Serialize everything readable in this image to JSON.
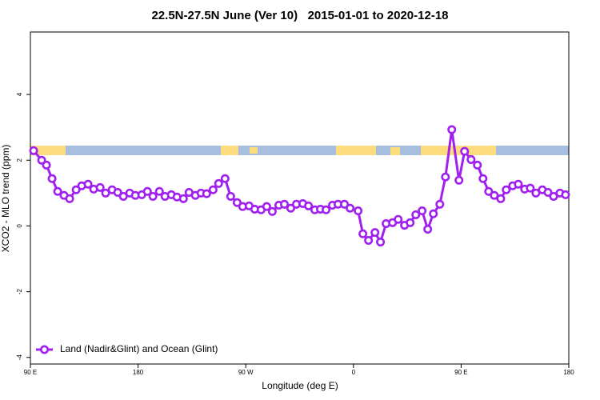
{
  "chart_data": {
    "type": "line",
    "title": "22.5N-27.5N June (Ver 10)   2015-01-01 to 2020-12-18",
    "x_label": "Longitude (deg E)",
    "y_label": "XCO2 - MLO trend (ppm)",
    "xlim": [
      90,
      540
    ],
    "ylim": [
      -4.2,
      5.9
    ],
    "xticks": [
      {
        "value": 90,
        "label": "90 E"
      },
      180,
      {
        "value": 270,
        "label": "90 W"
      },
      {
        "value": 360,
        "label": "0"
      },
      {
        "value": 450,
        "label": "90 E"
      },
      {
        "value": 540,
        "label": "180"
      }
    ],
    "yticks": [
      -4,
      -2,
      0,
      2,
      4
    ],
    "legend": "bottom-left",
    "x": [
      92.7,
      99.4,
      103.4,
      108.1,
      112.8,
      118.1,
      122.8,
      128.2,
      132.9,
      138.2,
      142.9,
      148.3,
      152.9,
      158.3,
      163,
      167.7,
      173,
      177.7,
      183.1,
      187.8,
      192.4,
      197.8,
      202.5,
      207.8,
      212.5,
      217.9,
      222.6,
      227.9,
      232.6,
      237.3,
      242.7,
      247.3,
      252.7,
      257.4,
      262.8,
      267.4,
      272.8,
      277.5,
      282.8,
      287.5,
      292.2,
      297.6,
      302.3,
      307.6,
      312.3,
      317.7,
      322.4,
      327.7,
      332.4,
      337.1,
      342.4,
      347.1,
      352.5,
      357.2,
      363.9,
      367.9,
      372.6,
      378,
      382.6,
      387.3,
      392.7,
      397.4,
      402.7,
      407.4,
      412.1,
      417.4,
      422.1,
      426.8,
      432.2,
      436.9,
      442.2,
      448.2,
      452.9,
      458.3,
      463.6,
      468.3,
      473,
      477.7,
      483.1,
      487.7,
      493.1,
      497.8,
      503.1,
      507.8,
      512.5,
      517.9,
      522.6,
      527.3,
      532.6,
      537.3
    ],
    "series": [
      {
        "name": "Land (Nadir&Glint) and Ocean (Glint)",
        "color": "#a020f0",
        "values": [
          2.29,
          2.0,
          1.85,
          1.44,
          1.05,
          0.93,
          0.83,
          1.1,
          1.22,
          1.27,
          1.12,
          1.17,
          1.0,
          1.1,
          1.02,
          0.9,
          1.0,
          0.93,
          0.95,
          1.05,
          0.9,
          1.05,
          0.9,
          0.95,
          0.88,
          0.83,
          1.02,
          0.93,
          1.0,
          0.98,
          1.1,
          1.29,
          1.44,
          0.9,
          0.71,
          0.59,
          0.61,
          0.51,
          0.49,
          0.59,
          0.44,
          0.63,
          0.66,
          0.54,
          0.66,
          0.68,
          0.61,
          0.49,
          0.51,
          0.49,
          0.63,
          0.66,
          0.66,
          0.54,
          0.46,
          -0.24,
          -0.44,
          -0.2,
          -0.49,
          0.07,
          0.1,
          0.2,
          0.02,
          0.1,
          0.34,
          0.46,
          -0.1,
          0.37,
          0.66,
          1.49,
          2.93,
          1.39,
          2.27,
          2.02,
          1.85,
          1.44,
          1.05,
          0.93,
          0.83,
          1.1,
          1.22,
          1.27,
          1.12,
          1.15,
          1.0,
          1.1,
          1.02,
          0.9,
          1.0,
          0.95
        ]
      }
    ]
  }
}
